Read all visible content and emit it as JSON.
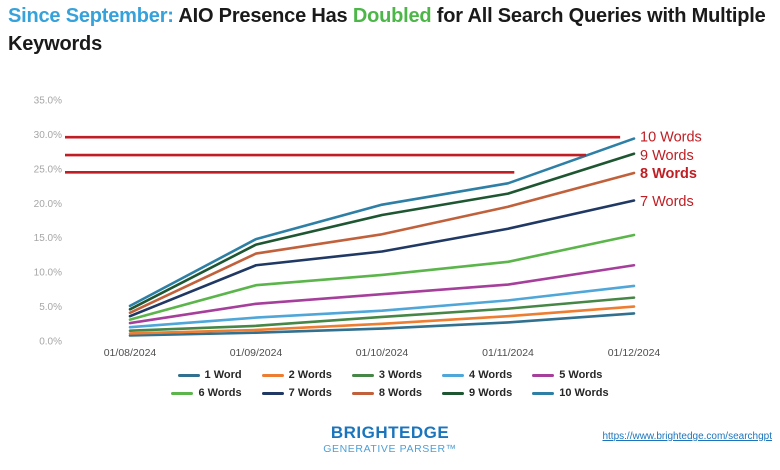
{
  "title": {
    "part1": "Since September:",
    "part2": " AIO Presence Has ",
    "part3": "Doubled",
    "part4": " for All Search Queries with Multiple Keywords"
  },
  "colors": {
    "title_blue": "#36A2DB",
    "title_green": "#4CB748",
    "annotation_red": "#BE1E24",
    "axis_gray": "#A6A6A6",
    "xlabel_gray": "#4D4D4D",
    "brand_blue": "#1B75BC",
    "brand_light_blue": "#4D9FD6"
  },
  "chart_data": {
    "type": "line",
    "x": [
      "01/08/2024",
      "01/09/2024",
      "01/10/2024",
      "01/11/2024",
      "01/12/2024"
    ],
    "yticks": [
      "0.0%",
      "5.0%",
      "10.0%",
      "15.0%",
      "20.0%",
      "25.0%",
      "30.0%",
      "35.0%"
    ],
    "ylim": [
      0,
      35
    ],
    "grid": false,
    "legend_position": "bottom",
    "series": [
      {
        "name": "1 Word",
        "color": "#31708F",
        "values": [
          0.8,
          1.2,
          1.8,
          2.7,
          4.0
        ]
      },
      {
        "name": "2 Words",
        "color": "#ED7D31",
        "values": [
          1.1,
          1.6,
          2.5,
          3.6,
          5.0
        ]
      },
      {
        "name": "3 Words",
        "color": "#468646",
        "values": [
          1.5,
          2.2,
          3.5,
          4.7,
          6.3
        ]
      },
      {
        "name": "4 Words",
        "color": "#4FA6D8",
        "values": [
          2.0,
          3.4,
          4.4,
          5.9,
          8.0
        ]
      },
      {
        "name": "5 Words",
        "color": "#A63F9B",
        "values": [
          2.6,
          5.4,
          6.8,
          8.2,
          11.0
        ]
      },
      {
        "name": "6 Words",
        "color": "#5BB54B",
        "values": [
          3.1,
          8.1,
          9.6,
          11.5,
          15.4
        ]
      },
      {
        "name": "7 Words",
        "color": "#203864",
        "values": [
          3.6,
          11.0,
          13.0,
          16.3,
          20.4
        ]
      },
      {
        "name": "8 Words",
        "color": "#C1613C",
        "values": [
          4.1,
          12.7,
          15.5,
          19.5,
          24.4
        ]
      },
      {
        "name": "9 Words",
        "color": "#1E5631",
        "values": [
          4.6,
          14.0,
          18.3,
          21.4,
          27.2
        ]
      },
      {
        "name": "10 Words",
        "color": "#2E7FA5",
        "values": [
          5.1,
          14.8,
          19.8,
          22.9,
          29.4
        ]
      }
    ],
    "annotations": {
      "red_lines": [
        {
          "y_value": 29.6,
          "x_end_frac": 3.89
        },
        {
          "y_value": 27.0,
          "x_end_frac": 3.62
        },
        {
          "y_value": 24.5,
          "x_end_frac": 3.05
        }
      ],
      "labels": [
        {
          "text": "10 Words",
          "at_value": 29.7,
          "bold": false
        },
        {
          "text": "9 Words",
          "at_value": 27.0,
          "bold": false
        },
        {
          "text": "8 Words",
          "at_value": 24.4,
          "bold": true
        },
        {
          "text": "7 Words",
          "at_value": 20.3,
          "bold": false
        }
      ]
    }
  },
  "footer": {
    "brand_line1": "BRIGHTEDGE",
    "brand_line2": "GENERATIVE PARSER™",
    "link": "https://www.brightedge.com/searchgpt"
  }
}
